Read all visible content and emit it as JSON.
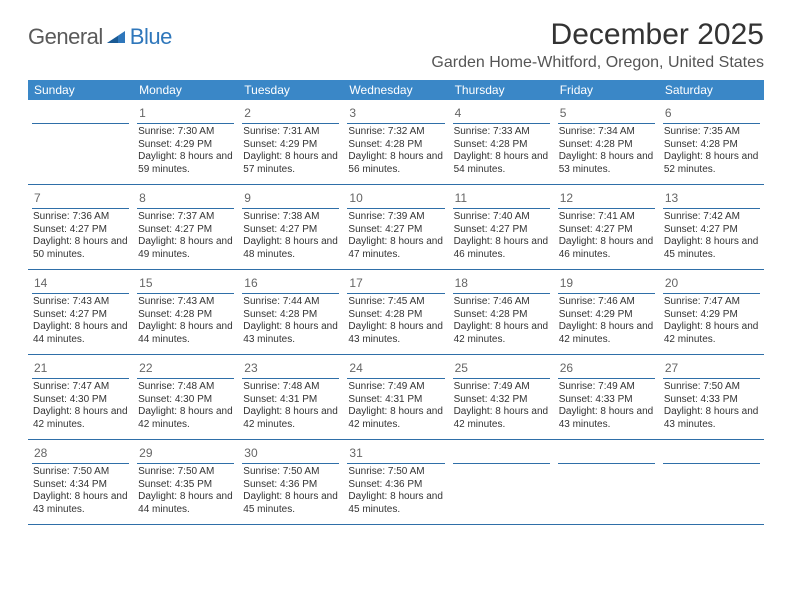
{
  "brand": {
    "word1": "General",
    "word2": "Blue"
  },
  "title": "December 2025",
  "location": "Garden Home-Whitford, Oregon, United States",
  "colors": {
    "header_bg": "#3a87c7",
    "divider": "#2f6fa8",
    "brand_blue": "#2f77bb",
    "brand_dark": "#5a5a5a",
    "text": "#333333",
    "daynum": "#666666"
  },
  "day_headers": [
    "Sunday",
    "Monday",
    "Tuesday",
    "Wednesday",
    "Thursday",
    "Friday",
    "Saturday"
  ],
  "weeks": [
    [
      {
        "num": "",
        "sunrise": "",
        "sunset": "",
        "daylight": ""
      },
      {
        "num": "1",
        "sunrise": "Sunrise: 7:30 AM",
        "sunset": "Sunset: 4:29 PM",
        "daylight": "Daylight: 8 hours and 59 minutes."
      },
      {
        "num": "2",
        "sunrise": "Sunrise: 7:31 AM",
        "sunset": "Sunset: 4:29 PM",
        "daylight": "Daylight: 8 hours and 57 minutes."
      },
      {
        "num": "3",
        "sunrise": "Sunrise: 7:32 AM",
        "sunset": "Sunset: 4:28 PM",
        "daylight": "Daylight: 8 hours and 56 minutes."
      },
      {
        "num": "4",
        "sunrise": "Sunrise: 7:33 AM",
        "sunset": "Sunset: 4:28 PM",
        "daylight": "Daylight: 8 hours and 54 minutes."
      },
      {
        "num": "5",
        "sunrise": "Sunrise: 7:34 AM",
        "sunset": "Sunset: 4:28 PM",
        "daylight": "Daylight: 8 hours and 53 minutes."
      },
      {
        "num": "6",
        "sunrise": "Sunrise: 7:35 AM",
        "sunset": "Sunset: 4:28 PM",
        "daylight": "Daylight: 8 hours and 52 minutes."
      }
    ],
    [
      {
        "num": "7",
        "sunrise": "Sunrise: 7:36 AM",
        "sunset": "Sunset: 4:27 PM",
        "daylight": "Daylight: 8 hours and 50 minutes."
      },
      {
        "num": "8",
        "sunrise": "Sunrise: 7:37 AM",
        "sunset": "Sunset: 4:27 PM",
        "daylight": "Daylight: 8 hours and 49 minutes."
      },
      {
        "num": "9",
        "sunrise": "Sunrise: 7:38 AM",
        "sunset": "Sunset: 4:27 PM",
        "daylight": "Daylight: 8 hours and 48 minutes."
      },
      {
        "num": "10",
        "sunrise": "Sunrise: 7:39 AM",
        "sunset": "Sunset: 4:27 PM",
        "daylight": "Daylight: 8 hours and 47 minutes."
      },
      {
        "num": "11",
        "sunrise": "Sunrise: 7:40 AM",
        "sunset": "Sunset: 4:27 PM",
        "daylight": "Daylight: 8 hours and 46 minutes."
      },
      {
        "num": "12",
        "sunrise": "Sunrise: 7:41 AM",
        "sunset": "Sunset: 4:27 PM",
        "daylight": "Daylight: 8 hours and 46 minutes."
      },
      {
        "num": "13",
        "sunrise": "Sunrise: 7:42 AM",
        "sunset": "Sunset: 4:27 PM",
        "daylight": "Daylight: 8 hours and 45 minutes."
      }
    ],
    [
      {
        "num": "14",
        "sunrise": "Sunrise: 7:43 AM",
        "sunset": "Sunset: 4:27 PM",
        "daylight": "Daylight: 8 hours and 44 minutes."
      },
      {
        "num": "15",
        "sunrise": "Sunrise: 7:43 AM",
        "sunset": "Sunset: 4:28 PM",
        "daylight": "Daylight: 8 hours and 44 minutes."
      },
      {
        "num": "16",
        "sunrise": "Sunrise: 7:44 AM",
        "sunset": "Sunset: 4:28 PM",
        "daylight": "Daylight: 8 hours and 43 minutes."
      },
      {
        "num": "17",
        "sunrise": "Sunrise: 7:45 AM",
        "sunset": "Sunset: 4:28 PM",
        "daylight": "Daylight: 8 hours and 43 minutes."
      },
      {
        "num": "18",
        "sunrise": "Sunrise: 7:46 AM",
        "sunset": "Sunset: 4:28 PM",
        "daylight": "Daylight: 8 hours and 42 minutes."
      },
      {
        "num": "19",
        "sunrise": "Sunrise: 7:46 AM",
        "sunset": "Sunset: 4:29 PM",
        "daylight": "Daylight: 8 hours and 42 minutes."
      },
      {
        "num": "20",
        "sunrise": "Sunrise: 7:47 AM",
        "sunset": "Sunset: 4:29 PM",
        "daylight": "Daylight: 8 hours and 42 minutes."
      }
    ],
    [
      {
        "num": "21",
        "sunrise": "Sunrise: 7:47 AM",
        "sunset": "Sunset: 4:30 PM",
        "daylight": "Daylight: 8 hours and 42 minutes."
      },
      {
        "num": "22",
        "sunrise": "Sunrise: 7:48 AM",
        "sunset": "Sunset: 4:30 PM",
        "daylight": "Daylight: 8 hours and 42 minutes."
      },
      {
        "num": "23",
        "sunrise": "Sunrise: 7:48 AM",
        "sunset": "Sunset: 4:31 PM",
        "daylight": "Daylight: 8 hours and 42 minutes."
      },
      {
        "num": "24",
        "sunrise": "Sunrise: 7:49 AM",
        "sunset": "Sunset: 4:31 PM",
        "daylight": "Daylight: 8 hours and 42 minutes."
      },
      {
        "num": "25",
        "sunrise": "Sunrise: 7:49 AM",
        "sunset": "Sunset: 4:32 PM",
        "daylight": "Daylight: 8 hours and 42 minutes."
      },
      {
        "num": "26",
        "sunrise": "Sunrise: 7:49 AM",
        "sunset": "Sunset: 4:33 PM",
        "daylight": "Daylight: 8 hours and 43 minutes."
      },
      {
        "num": "27",
        "sunrise": "Sunrise: 7:50 AM",
        "sunset": "Sunset: 4:33 PM",
        "daylight": "Daylight: 8 hours and 43 minutes."
      }
    ],
    [
      {
        "num": "28",
        "sunrise": "Sunrise: 7:50 AM",
        "sunset": "Sunset: 4:34 PM",
        "daylight": "Daylight: 8 hours and 43 minutes."
      },
      {
        "num": "29",
        "sunrise": "Sunrise: 7:50 AM",
        "sunset": "Sunset: 4:35 PM",
        "daylight": "Daylight: 8 hours and 44 minutes."
      },
      {
        "num": "30",
        "sunrise": "Sunrise: 7:50 AM",
        "sunset": "Sunset: 4:36 PM",
        "daylight": "Daylight: 8 hours and 45 minutes."
      },
      {
        "num": "31",
        "sunrise": "Sunrise: 7:50 AM",
        "sunset": "Sunset: 4:36 PM",
        "daylight": "Daylight: 8 hours and 45 minutes."
      },
      {
        "num": "",
        "sunrise": "",
        "sunset": "",
        "daylight": ""
      },
      {
        "num": "",
        "sunrise": "",
        "sunset": "",
        "daylight": ""
      },
      {
        "num": "",
        "sunrise": "",
        "sunset": "",
        "daylight": ""
      }
    ]
  ]
}
